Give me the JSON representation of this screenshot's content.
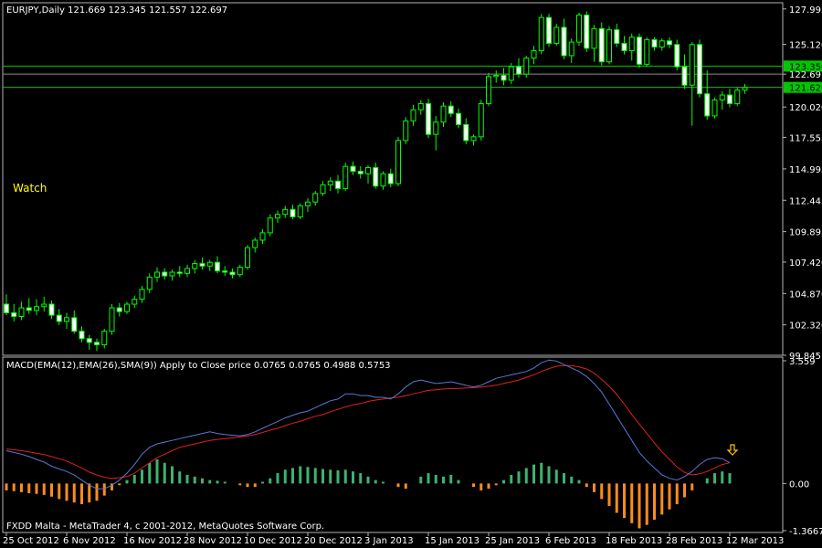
{
  "window": {
    "symbol_label": "EURJPY,Daily  121.669 123.345 121.557 122.697",
    "watch_label": "Watch",
    "footer_text": "FXDD Malta - MetaTrader 4, c 2001-2012, MetaQuotes Software Corp."
  },
  "colors": {
    "background": "#000000",
    "frame": "#b4b4b4",
    "text": "#ffffff",
    "bull_candle": "#000000",
    "bear_candle": "#ffffff",
    "candle_outline": "#00ff00",
    "horizontal_line": "#00c800",
    "price_tag_bg": "#00c800",
    "watch": "#ffff00",
    "macd_line": "#5a78d2",
    "signal_line": "#e02020",
    "hist_positive": "#3cb371",
    "hist_negative": "#ff8c1a",
    "arrow": "#ffc000"
  },
  "chart_data": [
    {
      "type": "candlestick",
      "symbol": "EURJPY",
      "timeframe": "Daily",
      "ylim": [
        99.845,
        128.5
      ],
      "y_ticks": [
        "127.995",
        "125.120",
        "122.697",
        "120.020",
        "117.555",
        "114.995",
        "112.445",
        "109.895",
        "107.420",
        "104.870",
        "102.320",
        "99.845"
      ],
      "y_tick_values": [
        127.995,
        125.12,
        122.697,
        120.02,
        117.555,
        114.995,
        112.445,
        109.895,
        107.42,
        104.87,
        102.32,
        99.845
      ],
      "x_ticks": [
        "25 Oct 2012",
        "6 Nov 2012",
        "16 Nov 2012",
        "28 Nov 2012",
        "10 Dec 2012",
        "20 Dec 2012",
        "3 Jan 2013",
        "15 Jan 2013",
        "25 Jan 2013",
        "6 Feb 2013",
        "18 Feb 2013",
        "28 Feb 2013",
        "12 Mar 2013"
      ],
      "x_tick_bar_index": [
        0,
        8,
        16,
        24,
        32,
        40,
        48,
        56,
        64,
        72,
        80,
        88,
        96
      ],
      "horizontal_lines": [
        {
          "price": 123.35,
          "label": "123.350"
        },
        {
          "price": 121.62,
          "label": "121.620"
        }
      ],
      "current_price": 122.697,
      "candles": [
        {
          "o": 104.0,
          "h": 104.8,
          "l": 103.1,
          "c": 103.3
        },
        {
          "o": 103.3,
          "h": 104.0,
          "l": 102.6,
          "c": 103.0
        },
        {
          "o": 103.0,
          "h": 104.2,
          "l": 102.7,
          "c": 103.7
        },
        {
          "o": 103.7,
          "h": 104.5,
          "l": 103.2,
          "c": 103.5
        },
        {
          "o": 103.5,
          "h": 104.4,
          "l": 103.1,
          "c": 103.8
        },
        {
          "o": 103.8,
          "h": 104.6,
          "l": 103.4,
          "c": 104.0
        },
        {
          "o": 104.0,
          "h": 104.3,
          "l": 102.8,
          "c": 103.1
        },
        {
          "o": 103.1,
          "h": 103.6,
          "l": 102.3,
          "c": 102.6
        },
        {
          "o": 102.6,
          "h": 103.3,
          "l": 102.0,
          "c": 102.9
        },
        {
          "o": 102.9,
          "h": 103.5,
          "l": 101.6,
          "c": 101.8
        },
        {
          "o": 101.8,
          "h": 102.2,
          "l": 100.9,
          "c": 101.2
        },
        {
          "o": 101.2,
          "h": 101.5,
          "l": 100.3,
          "c": 100.9
        },
        {
          "o": 100.9,
          "h": 101.2,
          "l": 100.2,
          "c": 100.7
        },
        {
          "o": 100.7,
          "h": 102.0,
          "l": 100.4,
          "c": 101.8
        },
        {
          "o": 101.8,
          "h": 104.0,
          "l": 101.5,
          "c": 103.7
        },
        {
          "o": 103.7,
          "h": 104.1,
          "l": 103.0,
          "c": 103.4
        },
        {
          "o": 103.4,
          "h": 104.2,
          "l": 103.2,
          "c": 104.0
        },
        {
          "o": 104.0,
          "h": 104.7,
          "l": 103.7,
          "c": 104.4
        },
        {
          "o": 104.4,
          "h": 105.5,
          "l": 104.1,
          "c": 105.2
        },
        {
          "o": 105.2,
          "h": 106.5,
          "l": 104.9,
          "c": 106.2
        },
        {
          "o": 106.2,
          "h": 107.0,
          "l": 105.8,
          "c": 106.6
        },
        {
          "o": 106.6,
          "h": 106.9,
          "l": 106.0,
          "c": 106.3
        },
        {
          "o": 106.3,
          "h": 106.8,
          "l": 105.9,
          "c": 106.6
        },
        {
          "o": 106.6,
          "h": 107.1,
          "l": 106.2,
          "c": 106.5
        },
        {
          "o": 106.5,
          "h": 107.2,
          "l": 106.2,
          "c": 106.9
        },
        {
          "o": 106.9,
          "h": 107.6,
          "l": 106.5,
          "c": 107.3
        },
        {
          "o": 107.3,
          "h": 107.8,
          "l": 106.8,
          "c": 107.1
        },
        {
          "o": 107.1,
          "h": 107.6,
          "l": 106.7,
          "c": 107.4
        },
        {
          "o": 107.4,
          "h": 107.9,
          "l": 106.5,
          "c": 106.7
        },
        {
          "o": 106.7,
          "h": 107.1,
          "l": 106.3,
          "c": 106.6
        },
        {
          "o": 106.6,
          "h": 106.9,
          "l": 106.1,
          "c": 106.4
        },
        {
          "o": 106.4,
          "h": 107.2,
          "l": 106.2,
          "c": 107.0
        },
        {
          "o": 107.0,
          "h": 108.8,
          "l": 106.8,
          "c": 108.6
        },
        {
          "o": 108.6,
          "h": 109.4,
          "l": 108.2,
          "c": 109.2
        },
        {
          "o": 109.2,
          "h": 110.1,
          "l": 108.9,
          "c": 109.8
        },
        {
          "o": 109.8,
          "h": 111.3,
          "l": 109.5,
          "c": 111.0
        },
        {
          "o": 111.0,
          "h": 111.6,
          "l": 110.6,
          "c": 111.3
        },
        {
          "o": 111.3,
          "h": 112.0,
          "l": 111.0,
          "c": 111.7
        },
        {
          "o": 111.7,
          "h": 112.1,
          "l": 110.9,
          "c": 111.1
        },
        {
          "o": 111.1,
          "h": 112.2,
          "l": 110.9,
          "c": 112.0
        },
        {
          "o": 112.0,
          "h": 112.6,
          "l": 111.5,
          "c": 112.3
        },
        {
          "o": 112.3,
          "h": 113.2,
          "l": 112.0,
          "c": 113.0
        },
        {
          "o": 113.0,
          "h": 114.0,
          "l": 112.8,
          "c": 113.7
        },
        {
          "o": 113.7,
          "h": 114.3,
          "l": 113.2,
          "c": 114.0
        },
        {
          "o": 114.0,
          "h": 114.5,
          "l": 113.0,
          "c": 113.4
        },
        {
          "o": 113.4,
          "h": 115.5,
          "l": 113.2,
          "c": 115.2
        },
        {
          "o": 115.2,
          "h": 115.6,
          "l": 114.5,
          "c": 114.8
        },
        {
          "o": 114.8,
          "h": 115.2,
          "l": 114.2,
          "c": 114.6
        },
        {
          "o": 114.6,
          "h": 115.3,
          "l": 113.8,
          "c": 115.1
        },
        {
          "o": 115.1,
          "h": 115.5,
          "l": 113.4,
          "c": 113.6
        },
        {
          "o": 113.6,
          "h": 114.8,
          "l": 113.3,
          "c": 114.6
        },
        {
          "o": 114.6,
          "h": 115.0,
          "l": 113.5,
          "c": 113.8
        },
        {
          "o": 113.8,
          "h": 117.6,
          "l": 113.6,
          "c": 117.3
        },
        {
          "o": 117.3,
          "h": 119.2,
          "l": 117.0,
          "c": 118.9
        },
        {
          "o": 118.9,
          "h": 120.2,
          "l": 118.5,
          "c": 119.8
        },
        {
          "o": 119.8,
          "h": 120.6,
          "l": 119.4,
          "c": 120.3
        },
        {
          "o": 120.3,
          "h": 120.7,
          "l": 117.5,
          "c": 117.8
        },
        {
          "o": 117.8,
          "h": 119.3,
          "l": 116.5,
          "c": 118.8
        },
        {
          "o": 118.8,
          "h": 120.4,
          "l": 118.4,
          "c": 120.1
        },
        {
          "o": 120.1,
          "h": 120.5,
          "l": 119.2,
          "c": 119.5
        },
        {
          "o": 119.5,
          "h": 119.9,
          "l": 118.3,
          "c": 118.6
        },
        {
          "o": 118.6,
          "h": 119.1,
          "l": 117.0,
          "c": 117.3
        },
        {
          "o": 117.3,
          "h": 117.8,
          "l": 116.9,
          "c": 117.6
        },
        {
          "o": 117.6,
          "h": 120.6,
          "l": 117.3,
          "c": 120.3
        },
        {
          "o": 120.3,
          "h": 122.8,
          "l": 120.1,
          "c": 122.5
        },
        {
          "o": 122.5,
          "h": 123.0,
          "l": 122.0,
          "c": 122.6
        },
        {
          "o": 122.6,
          "h": 123.2,
          "l": 121.8,
          "c": 122.2
        },
        {
          "o": 122.2,
          "h": 123.6,
          "l": 121.9,
          "c": 123.3
        },
        {
          "o": 123.3,
          "h": 124.0,
          "l": 122.4,
          "c": 122.7
        },
        {
          "o": 122.7,
          "h": 124.2,
          "l": 122.4,
          "c": 124.0
        },
        {
          "o": 124.0,
          "h": 125.0,
          "l": 123.5,
          "c": 124.6
        },
        {
          "o": 124.6,
          "h": 127.6,
          "l": 124.3,
          "c": 127.3
        },
        {
          "o": 127.3,
          "h": 127.6,
          "l": 124.9,
          "c": 125.2
        },
        {
          "o": 125.2,
          "h": 126.8,
          "l": 125.0,
          "c": 126.5
        },
        {
          "o": 126.5,
          "h": 127.2,
          "l": 123.9,
          "c": 124.2
        },
        {
          "o": 124.2,
          "h": 125.6,
          "l": 123.6,
          "c": 125.3
        },
        {
          "o": 125.3,
          "h": 127.7,
          "l": 125.0,
          "c": 127.5
        },
        {
          "o": 127.5,
          "h": 127.8,
          "l": 124.5,
          "c": 124.8
        },
        {
          "o": 124.8,
          "h": 126.7,
          "l": 123.7,
          "c": 126.4
        },
        {
          "o": 126.4,
          "h": 126.9,
          "l": 123.4,
          "c": 123.7
        },
        {
          "o": 123.7,
          "h": 126.6,
          "l": 123.5,
          "c": 126.3
        },
        {
          "o": 126.3,
          "h": 126.8,
          "l": 124.9,
          "c": 125.2
        },
        {
          "o": 125.2,
          "h": 125.8,
          "l": 124.3,
          "c": 124.6
        },
        {
          "o": 124.6,
          "h": 126.0,
          "l": 123.8,
          "c": 125.7
        },
        {
          "o": 125.7,
          "h": 126.0,
          "l": 123.2,
          "c": 123.5
        },
        {
          "o": 123.5,
          "h": 125.7,
          "l": 123.3,
          "c": 125.5
        },
        {
          "o": 125.5,
          "h": 125.7,
          "l": 124.6,
          "c": 124.9
        },
        {
          "o": 124.9,
          "h": 125.6,
          "l": 124.6,
          "c": 125.4
        },
        {
          "o": 125.4,
          "h": 125.7,
          "l": 124.8,
          "c": 125.1
        },
        {
          "o": 125.1,
          "h": 125.5,
          "l": 123.0,
          "c": 123.3
        },
        {
          "o": 123.3,
          "h": 124.3,
          "l": 121.5,
          "c": 121.8
        },
        {
          "o": 121.8,
          "h": 125.3,
          "l": 118.5,
          "c": 125.1
        },
        {
          "o": 125.1,
          "h": 125.5,
          "l": 120.8,
          "c": 121.1
        },
        {
          "o": 121.1,
          "h": 123.0,
          "l": 119.0,
          "c": 119.3
        },
        {
          "o": 119.3,
          "h": 120.8,
          "l": 119.1,
          "c": 120.6
        },
        {
          "o": 120.6,
          "h": 121.3,
          "l": 119.8,
          "c": 121.0
        },
        {
          "o": 121.0,
          "h": 121.5,
          "l": 120.0,
          "c": 120.3
        },
        {
          "o": 120.3,
          "h": 121.6,
          "l": 120.1,
          "c": 121.4
        },
        {
          "o": 121.4,
          "h": 121.9,
          "l": 121.1,
          "c": 121.6
        }
      ]
    },
    {
      "type": "macd",
      "label": "MACD(EMA(12),EMA(26),SMA(9)) Apply to Close price 0.0765 0.0765 0.4988 0.5753",
      "ylim": [
        -1.3667,
        3.559
      ],
      "y_ticks": [
        "3.559",
        "0.00",
        "-1.3667"
      ],
      "y_tick_values": [
        3.559,
        0.0,
        -1.3667
      ],
      "macd": [
        0.95,
        0.9,
        0.85,
        0.78,
        0.7,
        0.62,
        0.5,
        0.42,
        0.35,
        0.25,
        0.1,
        -0.05,
        -0.15,
        -0.15,
        -0.05,
        0.1,
        0.3,
        0.55,
        0.85,
        1.05,
        1.15,
        1.2,
        1.25,
        1.3,
        1.35,
        1.4,
        1.45,
        1.5,
        1.45,
        1.42,
        1.4,
        1.38,
        1.42,
        1.5,
        1.6,
        1.7,
        1.8,
        1.9,
        1.98,
        2.05,
        2.1,
        2.2,
        2.3,
        2.4,
        2.45,
        2.6,
        2.6,
        2.55,
        2.55,
        2.5,
        2.5,
        2.45,
        2.6,
        2.8,
        2.95,
        3.0,
        2.95,
        2.9,
        2.92,
        2.95,
        2.9,
        2.85,
        2.8,
        2.85,
        2.95,
        3.05,
        3.1,
        3.15,
        3.2,
        3.25,
        3.35,
        3.5,
        3.58,
        3.55,
        3.45,
        3.35,
        3.25,
        3.1,
        2.9,
        2.65,
        2.3,
        1.95,
        1.6,
        1.25,
        0.9,
        0.65,
        0.45,
        0.25,
        0.15,
        0.1,
        0.2,
        0.35,
        0.55,
        0.7,
        0.75,
        0.72,
        0.6
      ],
      "signal": [
        1.0,
        0.98,
        0.95,
        0.92,
        0.88,
        0.84,
        0.78,
        0.72,
        0.65,
        0.55,
        0.45,
        0.33,
        0.25,
        0.18,
        0.15,
        0.17,
        0.2,
        0.3,
        0.45,
        0.6,
        0.75,
        0.85,
        0.95,
        1.05,
        1.1,
        1.15,
        1.2,
        1.25,
        1.28,
        1.3,
        1.32,
        1.35,
        1.38,
        1.42,
        1.48,
        1.55,
        1.6,
        1.68,
        1.75,
        1.8,
        1.88,
        1.95,
        2.0,
        2.08,
        2.15,
        2.22,
        2.28,
        2.32,
        2.38,
        2.42,
        2.45,
        2.48,
        2.5,
        2.55,
        2.6,
        2.65,
        2.7,
        2.72,
        2.74,
        2.75,
        2.76,
        2.77,
        2.78,
        2.8,
        2.82,
        2.85,
        2.9,
        2.95,
        3.0,
        3.08,
        3.15,
        3.25,
        3.33,
        3.4,
        3.42,
        3.42,
        3.38,
        3.32,
        3.2,
        3.02,
        2.82,
        2.58,
        2.3,
        2.0,
        1.72,
        1.45,
        1.18,
        0.92,
        0.7,
        0.48,
        0.32,
        0.25,
        0.28,
        0.35,
        0.45,
        0.55,
        0.6
      ],
      "histogram": [
        -0.2,
        -0.22,
        -0.25,
        -0.28,
        -0.3,
        -0.33,
        -0.38,
        -0.45,
        -0.5,
        -0.55,
        -0.6,
        -0.55,
        -0.5,
        -0.35,
        -0.2,
        -0.05,
        0.1,
        0.25,
        0.4,
        0.6,
        0.7,
        0.6,
        0.5,
        0.35,
        0.25,
        0.2,
        0.15,
        0.1,
        0.08,
        0.05,
        0.0,
        -0.05,
        -0.1,
        -0.1,
        0.05,
        0.15,
        0.3,
        0.4,
        0.45,
        0.5,
        0.48,
        0.45,
        0.42,
        0.4,
        0.38,
        0.4,
        0.35,
        0.3,
        0.2,
        0.1,
        0.05,
        0.0,
        -0.1,
        -0.15,
        0.0,
        0.2,
        0.3,
        0.25,
        0.2,
        0.25,
        0.1,
        0.0,
        -0.1,
        -0.2,
        -0.15,
        -0.05,
        0.1,
        0.25,
        0.35,
        0.45,
        0.55,
        0.6,
        0.5,
        0.4,
        0.3,
        0.2,
        0.1,
        -0.1,
        -0.25,
        -0.45,
        -0.65,
        -0.85,
        -1.0,
        -1.15,
        -1.3,
        -1.2,
        -1.05,
        -0.9,
        -0.75,
        -0.6,
        -0.4,
        -0.2,
        0.0,
        0.15,
        0.3,
        0.35,
        0.3
      ]
    }
  ]
}
